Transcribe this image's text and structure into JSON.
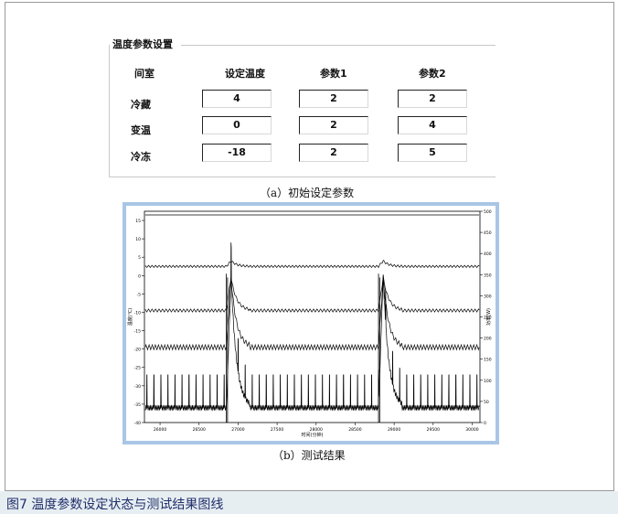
{
  "dialog": {
    "title": "温度参数设置",
    "headers": [
      "间室",
      "设定温度",
      "参数1",
      "参数2"
    ],
    "rows": [
      {
        "label": "冷藏",
        "values": [
          "4",
          "2",
          "2"
        ]
      },
      {
        "label": "变温",
        "values": [
          "0",
          "2",
          "4"
        ]
      },
      {
        "label": "冷冻",
        "values": [
          "-18",
          "2",
          "5"
        ]
      }
    ]
  },
  "caption_a": "（a）初始设定参数",
  "caption_b": "（b）测试结果",
  "figure_caption": "图7  温度参数设定状态与测试结果图线",
  "chart_data": {
    "type": "line",
    "xlabel": "时间(分钟)",
    "ylabel": "温度(℃)",
    "y2label": "功率(W)",
    "x_ticks": [
      "26000",
      "26500",
      "27000",
      "27500",
      "28000",
      "28500",
      "29000",
      "29500",
      "30000"
    ],
    "y_ticks": [
      "15",
      "10",
      "5",
      "0",
      "-5",
      "-10",
      "-15",
      "-20",
      "-25",
      "-30",
      "-35",
      "-40"
    ],
    "y2_ticks": [
      "500",
      "450",
      "400",
      "350",
      "300",
      "250",
      "200",
      "150",
      "100",
      "50",
      "0"
    ],
    "xlim": [
      25800,
      30100
    ],
    "ylim": [
      -40,
      17.5
    ],
    "y2lim": [
      0,
      500
    ],
    "series": [
      {
        "baseline": 16.5,
        "amplitude": 0,
        "note_level": "flat"
      },
      {
        "baseline": 2.5,
        "amplitude": 0.6,
        "defrost_peak": 4.0
      },
      {
        "baseline": -9.5,
        "amplitude": 0.8,
        "defrost_peak": -0.5
      },
      {
        "baseline": -19.5,
        "amplitude": 1.3,
        "defrost_peak": -0.5
      },
      {
        "baseline": -36,
        "amplitude": 1.5,
        "spike_top": -27,
        "defrost_peak": 0
      }
    ],
    "defrost_at": [
      26850,
      28800
    ],
    "colors": {
      "line": "#000000",
      "frame": "#a9c6e6"
    }
  }
}
